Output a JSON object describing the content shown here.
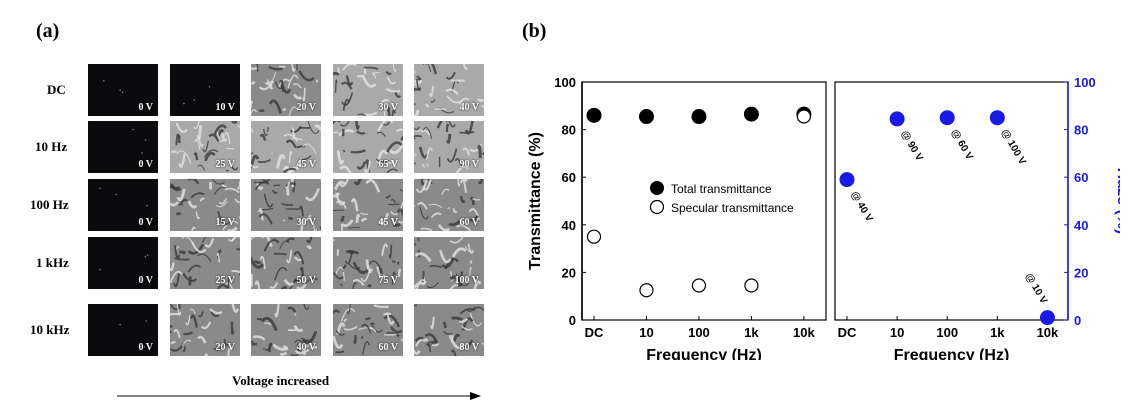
{
  "panel_a": {
    "label": "(a)",
    "rows": [
      {
        "label": "DC",
        "voltages": [
          "0 V",
          "10 V",
          "20 V",
          "30 V",
          "40 V"
        ],
        "tones": [
          "dark",
          "dark",
          "texture-mid",
          "texture-light",
          "texture-light"
        ]
      },
      {
        "label": "10 Hz",
        "voltages": [
          "0 V",
          "25 V",
          "45 V",
          "65 V",
          "90 V"
        ],
        "tones": [
          "dark",
          "texture-light",
          "texture-light",
          "texture-light",
          "texture-light"
        ]
      },
      {
        "label": "100 Hz",
        "voltages": [
          "0 V",
          "15 V",
          "30 V",
          "45 V",
          "60 V"
        ],
        "tones": [
          "dark",
          "texture-mid",
          "texture-mid",
          "texture-mid",
          "texture-mid"
        ]
      },
      {
        "label": "1 kHz",
        "voltages": [
          "0 V",
          "25 V",
          "50 V",
          "75 V",
          "100 V"
        ],
        "tones": [
          "dark",
          "texture-mid",
          "texture-mid",
          "texture-mid",
          "texture-mid"
        ]
      },
      {
        "label": "10 kHz",
        "voltages": [
          "0 V",
          "20 V",
          "40 V",
          "60 V",
          "80 V"
        ],
        "tones": [
          "dark",
          "texture-mid",
          "texture-mid",
          "texture-mid",
          "texture-mid"
        ]
      }
    ],
    "arrow_label": "Voltage increased"
  },
  "panel_b": {
    "label": "(b)"
  },
  "chart_data": [
    {
      "type": "scatter",
      "categories": [
        "DC",
        "10",
        "100",
        "1k",
        "10k"
      ],
      "xlabel": "Frequency (Hz)",
      "ylabel": "Transmittance (%)",
      "ylim": [
        0,
        100
      ],
      "yticks": [
        0,
        20,
        40,
        60,
        80,
        100
      ],
      "grid": false,
      "legend": "center-right",
      "series": [
        {
          "name": "Total transmittance",
          "marker": "filled-circle",
          "color": "#000000",
          "values": [
            86,
            85.5,
            85.5,
            86.5,
            86.5
          ]
        },
        {
          "name": "Specular transmittance",
          "marker": "open-circle",
          "color": "#000000",
          "values": [
            35,
            12.5,
            14.5,
            14.5,
            85.5
          ]
        }
      ]
    },
    {
      "type": "scatter",
      "categories": [
        "DC",
        "10",
        "100",
        "1k",
        "10k"
      ],
      "xlabel": "Frequency (Hz)",
      "ylabel": "Haze (%)",
      "ylim": [
        0,
        100
      ],
      "yticks": [
        0,
        20,
        40,
        60,
        80,
        100
      ],
      "grid": false,
      "axis_color": "#1a1ae6",
      "series": [
        {
          "marker": "filled-circle",
          "color": "#1a1ae6",
          "values": [
            59,
            84.5,
            85,
            85,
            1
          ]
        }
      ],
      "annotations": [
        "@ 40 V",
        "@ 90 V",
        "@ 60 V",
        "@ 100 V",
        "@ 10 V"
      ]
    }
  ]
}
